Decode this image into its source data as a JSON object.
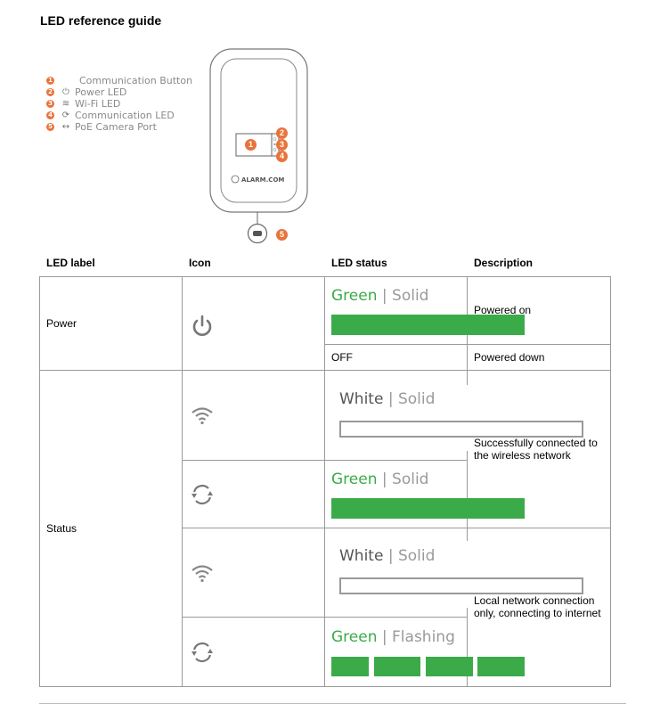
{
  "title": "LED reference guide",
  "legend": [
    {
      "num": "1",
      "icon": "",
      "label": "Communication Button"
    },
    {
      "num": "2",
      "icon": "power-icon",
      "label": "Power LED"
    },
    {
      "num": "3",
      "icon": "wifi-icon",
      "label": "Wi-Fi LED"
    },
    {
      "num": "4",
      "icon": "sync-icon",
      "label": "Communication LED"
    },
    {
      "num": "5",
      "icon": "port-icon",
      "label": "PoE Camera Port"
    }
  ],
  "device": {
    "logo": "ALARM.COM"
  },
  "table": {
    "headers": [
      "LED label",
      "Icon",
      "LED status",
      "Description"
    ],
    "groups": [
      {
        "label": "Power",
        "rows": [
          {
            "icon": "power-icon",
            "color": "Green",
            "mode": "Solid",
            "bar": "solid-green",
            "description": "Powered on"
          },
          {
            "status_text": "OFF",
            "description": "Powered down"
          }
        ]
      },
      {
        "label": "Status",
        "rows": [
          {
            "icon": "wifi-icon",
            "color": "White",
            "mode": "Solid",
            "bar": "solid-white",
            "description": "Successfully connected to the wireless network"
          },
          {
            "icon": "sync-icon",
            "color": "Green",
            "mode": "Solid",
            "bar": "solid-green"
          },
          {
            "icon": "wifi-icon",
            "color": "White",
            "mode": "Solid",
            "bar": "solid-white",
            "description": "Local network connection only, connecting to internet"
          },
          {
            "icon": "sync-icon",
            "color": "Green",
            "mode": "Flashing",
            "bar": "flashing-green"
          }
        ]
      }
    ]
  },
  "colors": {
    "green": "#3bab4a",
    "badge": "#e8743b",
    "border": "#9a9a9a"
  }
}
